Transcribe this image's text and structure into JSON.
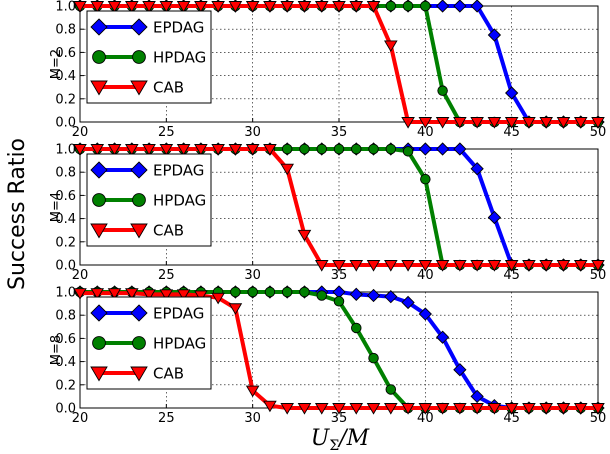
{
  "figure": {
    "ylabel": "Success Ratio",
    "xlabel_main": "U",
    "xlabel_sub": "Σ",
    "xlabel_tail": "/M"
  },
  "chart_data": [
    {
      "type": "line",
      "panel_label": "M=2",
      "x": [
        20,
        21,
        22,
        23,
        24,
        25,
        26,
        27,
        28,
        29,
        30,
        31,
        32,
        33,
        34,
        35,
        36,
        37,
        38,
        39,
        40,
        41,
        42,
        43,
        44,
        45,
        46,
        47,
        48,
        49,
        50
      ],
      "series": [
        {
          "name": "EPDAG",
          "color": "#0000ff",
          "marker": "diamond",
          "values": [
            1,
            1,
            1,
            1,
            1,
            1,
            1,
            1,
            1,
            1,
            1,
            1,
            1,
            1,
            1,
            1,
            1,
            1,
            1,
            1,
            1,
            1,
            1,
            1,
            0.75,
            0.25,
            0,
            0,
            0,
            0,
            0
          ]
        },
        {
          "name": "HPDAG",
          "color": "#008000",
          "marker": "circle",
          "values": [
            1,
            1,
            1,
            1,
            1,
            1,
            1,
            1,
            1,
            1,
            1,
            1,
            1,
            1,
            1,
            1,
            1,
            1,
            1,
            1,
            1,
            0.27,
            0,
            0,
            0,
            0,
            0,
            0,
            0,
            0,
            0
          ]
        },
        {
          "name": "CAB",
          "color": "#ff0000",
          "marker": "triangle-down",
          "values": [
            1,
            1,
            1,
            1,
            1,
            1,
            1,
            1,
            1,
            1,
            1,
            1,
            1,
            1,
            1,
            1,
            1,
            1,
            0.66,
            0,
            0,
            0,
            0,
            0,
            0,
            0,
            0,
            0,
            0,
            0,
            0
          ]
        }
      ],
      "xlim": [
        20,
        50
      ],
      "ylim": [
        0,
        1
      ],
      "xticks": [
        "20",
        "25",
        "30",
        "35",
        "40",
        "45",
        "50"
      ],
      "yticks": [
        "0.0",
        "0.2",
        "0.4",
        "0.6",
        "0.8",
        "1.0"
      ],
      "grid": true,
      "legend": "top-left"
    },
    {
      "type": "line",
      "panel_label": "M=4",
      "x": [
        20,
        21,
        22,
        23,
        24,
        25,
        26,
        27,
        28,
        29,
        30,
        31,
        32,
        33,
        34,
        35,
        36,
        37,
        38,
        39,
        40,
        41,
        42,
        43,
        44,
        45,
        46,
        47,
        48,
        49,
        50
      ],
      "series": [
        {
          "name": "EPDAG",
          "color": "#0000ff",
          "marker": "diamond",
          "values": [
            1,
            1,
            1,
            1,
            1,
            1,
            1,
            1,
            1,
            1,
            1,
            1,
            1,
            1,
            1,
            1,
            1,
            1,
            1,
            1,
            1,
            1,
            1,
            0.83,
            0.41,
            0,
            0,
            0,
            0,
            0,
            0
          ]
        },
        {
          "name": "HPDAG",
          "color": "#008000",
          "marker": "circle",
          "values": [
            1,
            1,
            1,
            1,
            1,
            1,
            1,
            1,
            1,
            1,
            1,
            1,
            1,
            1,
            1,
            1,
            1,
            1,
            1,
            0.98,
            0.74,
            0,
            0,
            0,
            0,
            0,
            0,
            0,
            0,
            0,
            0
          ]
        },
        {
          "name": "CAB",
          "color": "#ff0000",
          "marker": "triangle-down",
          "values": [
            1,
            1,
            1,
            1,
            1,
            1,
            1,
            1,
            1,
            1,
            1,
            1,
            0.83,
            0.26,
            0,
            0,
            0,
            0,
            0,
            0,
            0,
            0,
            0,
            0,
            0,
            0,
            0,
            0,
            0,
            0,
            0
          ]
        }
      ],
      "xlim": [
        20,
        50
      ],
      "ylim": [
        0,
        1
      ],
      "xticks": [
        "20",
        "25",
        "30",
        "35",
        "40",
        "45",
        "50"
      ],
      "yticks": [
        "0.0",
        "0.2",
        "0.4",
        "0.6",
        "0.8",
        "1.0"
      ],
      "grid": true,
      "legend": "top-left"
    },
    {
      "type": "line",
      "panel_label": "M=8",
      "x": [
        20,
        21,
        22,
        23,
        24,
        25,
        26,
        27,
        28,
        29,
        30,
        31,
        32,
        33,
        34,
        35,
        36,
        37,
        38,
        39,
        40,
        41,
        42,
        43,
        44,
        45,
        46,
        47,
        48,
        49,
        50
      ],
      "series": [
        {
          "name": "EPDAG",
          "color": "#0000ff",
          "marker": "diamond",
          "values": [
            1,
            1,
            1,
            1,
            1,
            1,
            1,
            1,
            1,
            1,
            1,
            1,
            1,
            1,
            1,
            1,
            0.98,
            0.97,
            0.96,
            0.91,
            0.81,
            0.61,
            0.33,
            0.1,
            0.02,
            0,
            0,
            0,
            0,
            0,
            0
          ]
        },
        {
          "name": "HPDAG",
          "color": "#008000",
          "marker": "circle",
          "values": [
            1,
            1,
            1,
            1,
            1,
            1,
            1,
            1,
            1,
            1,
            1,
            1,
            1,
            1,
            0.97,
            0.92,
            0.69,
            0.43,
            0.16,
            0,
            0,
            0,
            0,
            0,
            0,
            0,
            0,
            0,
            0,
            0,
            0
          ]
        },
        {
          "name": "CAB",
          "color": "#ff0000",
          "marker": "triangle-down",
          "values": [
            0.99,
            0.99,
            0.99,
            0.99,
            0.98,
            0.98,
            0.98,
            0.97,
            0.95,
            0.86,
            0.15,
            0.02,
            0,
            0,
            0,
            0,
            0,
            0,
            0,
            0,
            0,
            0,
            0,
            0,
            0,
            0,
            0,
            0,
            0,
            0,
            0
          ]
        }
      ],
      "xlim": [
        20,
        50
      ],
      "ylim": [
        0,
        1
      ],
      "xticks": [
        "20",
        "25",
        "30",
        "35",
        "40",
        "45",
        "50"
      ],
      "yticks": [
        "0.0",
        "0.2",
        "0.4",
        "0.6",
        "0.8",
        "1.0"
      ],
      "grid": true,
      "legend": "top-left"
    }
  ]
}
